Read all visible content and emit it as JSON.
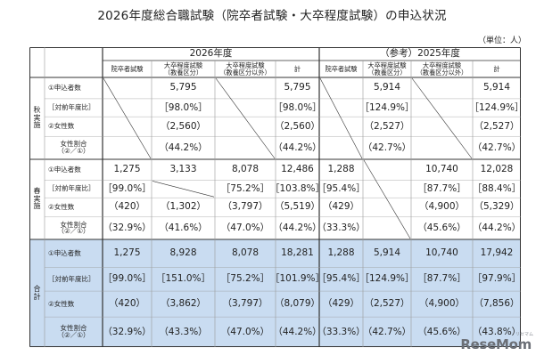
{
  "title": "2026年度総合職試験（院卒者試験・大卒程度試験）の申込状況",
  "unit": "（単位：人）",
  "years": [
    "2026年度",
    "（参考）2025年度"
  ],
  "columns": [
    [
      "院卒者試験"
    ],
    [
      "大卒程度試験",
      "（教養区分）"
    ],
    [
      "大卒程度試験",
      "（教養区分以外）"
    ],
    [
      "計"
    ]
  ],
  "row_labels": [
    "①申込者数",
    "［対前年度比］",
    "②女性数",
    [
      "女性割合",
      "（②／①）"
    ]
  ],
  "sections": [
    {
      "label": [
        "秋",
        "実",
        "施"
      ],
      "rows": [
        [
          [
            "",
            "5,795",
            "",
            "5,795"
          ],
          [
            "",
            "5,914",
            "",
            "5,914"
          ]
        ],
        [
          [
            "",
            "［98.0%］",
            "",
            "［98.0%］"
          ],
          [
            "",
            "［124.9%］",
            "",
            "［124.9%］"
          ]
        ],
        [
          [
            "",
            "（2,560）",
            "",
            "（2,560）"
          ],
          [
            "",
            "（2,527）",
            "",
            "（2,527）"
          ]
        ],
        [
          [
            "",
            "（44.2%）",
            "",
            "（44.2%）"
          ],
          [
            "",
            "（42.7%）",
            "",
            "（42.7%）"
          ]
        ]
      ]
    },
    {
      "label": [
        "春",
        "実",
        "施"
      ],
      "rows": [
        [
          [
            "1,275",
            "3,133",
            "8,078",
            "12,486"
          ],
          [
            "1,288",
            "",
            "10,740",
            "12,028"
          ]
        ],
        [
          [
            "［99.0%］",
            "",
            "［75.2%］",
            "［103.8%］"
          ],
          [
            "［95.4%］",
            "",
            "［87.7%］",
            "［88.4%］"
          ]
        ],
        [
          [
            "（420）",
            "（1,302）",
            "（3,797）",
            "（5,519）"
          ],
          [
            "（429）",
            "",
            "（4,900）",
            "（5,329）"
          ]
        ],
        [
          [
            "（32.9%）",
            "（41.6%）",
            "（47.0%）",
            "（44.2%）"
          ],
          [
            "（33.3%）",
            "",
            "（45.6%）",
            "（44.2%）"
          ]
        ]
      ]
    },
    {
      "label": [
        "合",
        "計"
      ],
      "rows": [
        [
          [
            "1,275",
            "8,928",
            "8,078",
            "18,281"
          ],
          [
            "1,288",
            "5,914",
            "10,740",
            "17,942"
          ]
        ],
        [
          [
            "［99.0%］",
            "［151.0%］",
            "［75.2%］",
            "［101.9%］"
          ],
          [
            "［95.4%］",
            "［124.9%］",
            "［87.7%］",
            "［97.9%］"
          ]
        ],
        [
          [
            "（420）",
            "（3,862）",
            "（3,797）",
            "（8,079）"
          ],
          [
            "（429）",
            "（2,527）",
            "（4,900）",
            "（7,856）"
          ]
        ],
        [
          [
            "（32.9%）",
            "（43.3%）",
            "（47.0%）",
            "（44.2%）"
          ],
          [
            "（33.3%）",
            "（42.7%）",
            "（45.6%）",
            "（43.8%）"
          ]
        ]
      ]
    }
  ],
  "colors": {
    "total_bg": "#c9dcf1",
    "line": "#333333",
    "light_line": "#9a9a9a"
  },
  "logo": {
    "text": "ReseMom",
    "sub": "リセマム"
  }
}
